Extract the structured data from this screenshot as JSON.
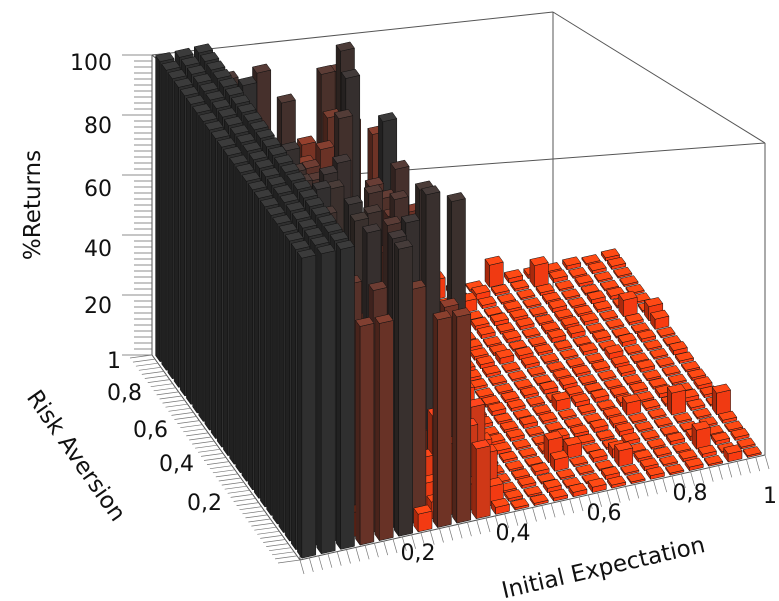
{
  "chart_data": {
    "type": "bar3d",
    "title": "",
    "xlabel": "Initial Expectation",
    "ylabel": "Risk Aversion",
    "zlabel": "%Returns",
    "xlim": [
      0,
      1
    ],
    "ylim": [
      0,
      1
    ],
    "zlim": [
      0,
      100
    ],
    "x_ticks": [
      "0,2",
      "0,4",
      "0,6",
      "0,8",
      "1"
    ],
    "y_ticks": [
      "0,2",
      "0,4",
      "0,6",
      "0,8",
      "1"
    ],
    "z_ticks": [
      "20",
      "40",
      "60",
      "80",
      "100"
    ],
    "grid": false,
    "colors": {
      "low": "#ff3b10",
      "high": "#2f2f2f"
    },
    "description_rows": [
      {
        "x_range": [
          0.0,
          0.12
        ],
        "value": 100
      },
      {
        "x_range": [
          0.12,
          0.45
        ],
        "value_range": [
          0,
          100
        ]
      },
      {
        "x_range": [
          0.45,
          1.0
        ],
        "value_range": [
          0,
          10
        ]
      }
    ]
  }
}
